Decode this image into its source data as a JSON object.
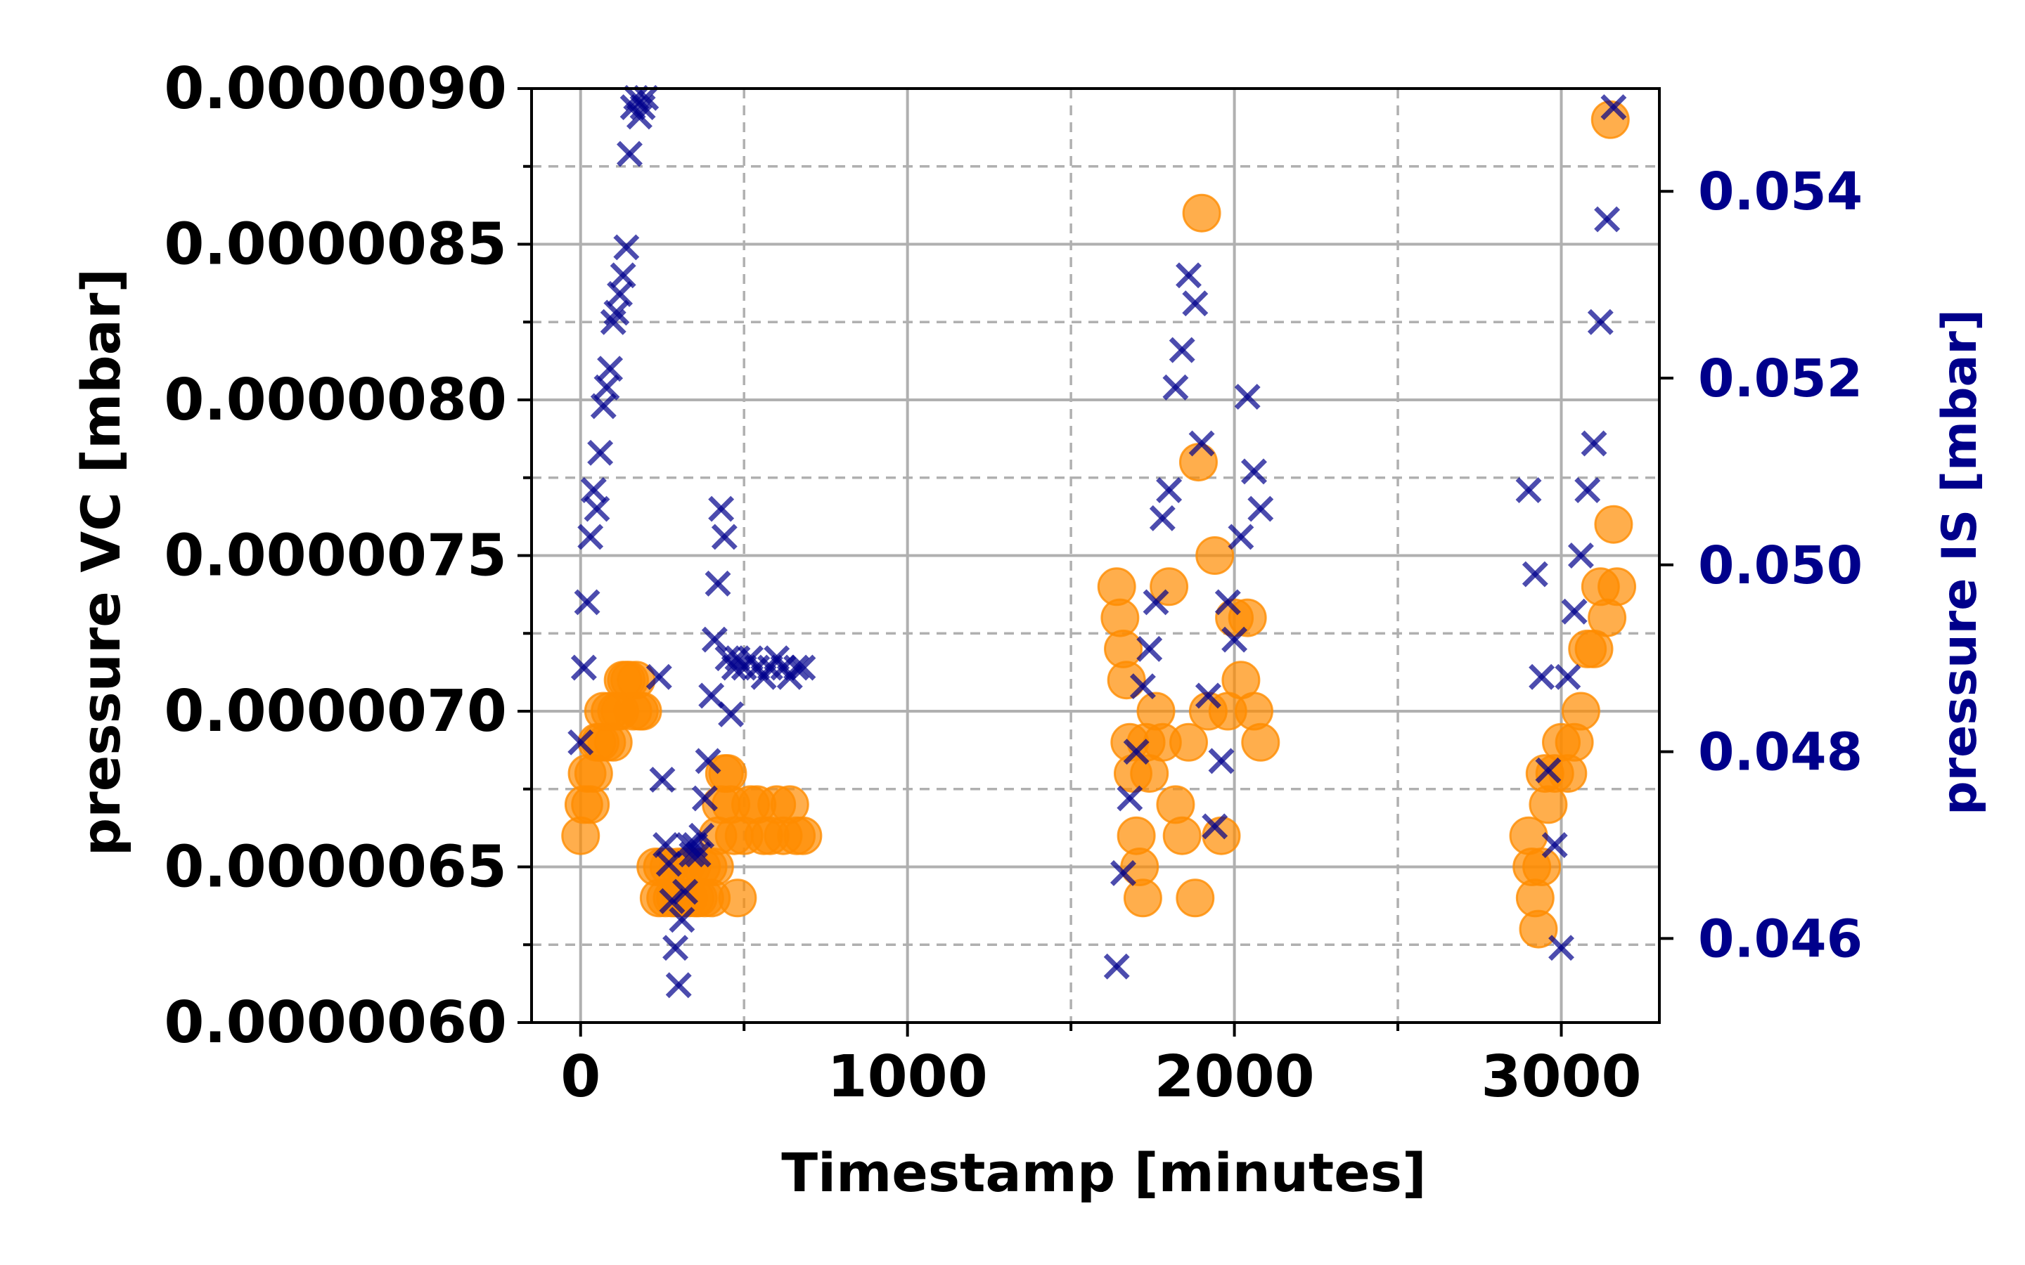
{
  "colors": {
    "vc_color": "#FF8C00",
    "is_color": "#00008B",
    "grid": "#b0b0b0",
    "axis": "#000000"
  },
  "chart_data": {
    "type": "scatter",
    "title": "",
    "xlabel": "Timestamp [minutes]",
    "ylabel": "pressure VC [mbar]",
    "ylabel_right": "pressure IS [mbar]",
    "xlim": [
      -150,
      3300
    ],
    "ylim": [
      6e-06,
      9e-06
    ],
    "ylim_right": [
      0.0451,
      0.0551
    ],
    "xticks": [
      0,
      1000,
      2000,
      3000
    ],
    "xtick_labels": [
      "0",
      "1000",
      "2000",
      "3000"
    ],
    "xticks_minor": [
      500,
      1500,
      2500
    ],
    "yticks": [
      6e-06,
      6.5e-06,
      7e-06,
      7.5e-06,
      8e-06,
      8.5e-06,
      9e-06
    ],
    "ytick_labels": [
      "0.0000060",
      "0.0000065",
      "0.0000070",
      "0.0000075",
      "0.0000080",
      "0.0000085",
      "0.0000090"
    ],
    "yticks_minor": [
      6.25e-06,
      6.75e-06,
      7.25e-06,
      7.75e-06,
      8.25e-06,
      8.75e-06
    ],
    "yticks_right": [
      0.046,
      0.048,
      0.05,
      0.052,
      0.054
    ],
    "ytick_labels_right": [
      "0.046",
      "0.048",
      "0.050",
      "0.052",
      "0.054"
    ],
    "grid": true,
    "legend": "none",
    "series": [
      {
        "axis": "left",
        "marker": "circle",
        "color": "#FF8C00",
        "x": [
          0,
          10,
          20,
          30,
          40,
          50,
          60,
          70,
          80,
          90,
          100,
          110,
          120,
          130,
          140,
          150,
          160,
          170,
          180,
          190,
          230,
          240,
          250,
          260,
          270,
          280,
          290,
          300,
          310,
          320,
          330,
          340,
          350,
          360,
          370,
          380,
          390,
          400,
          410,
          420,
          430,
          440,
          450,
          460,
          470,
          480,
          500,
          520,
          540,
          560,
          580,
          600,
          620,
          640,
          660,
          680,
          1640,
          1650,
          1660,
          1670,
          1680,
          1690,
          1700,
          1710,
          1720,
          1730,
          1740,
          1760,
          1780,
          1800,
          1820,
          1840,
          1860,
          1880,
          1890,
          1900,
          1920,
          1940,
          1960,
          1980,
          2000,
          2020,
          2040,
          2060,
          2080,
          2900,
          2910,
          2920,
          2930,
          2940,
          2950,
          2960,
          2980,
          3000,
          3020,
          3040,
          3060,
          3080,
          3100,
          3120,
          3140,
          3150,
          3160,
          3170
        ],
        "y": [
          6.6e-06,
          6.7e-06,
          6.8e-06,
          6.7e-06,
          6.8e-06,
          6.9e-06,
          6.9e-06,
          7e-06,
          6.9e-06,
          7e-06,
          6.9e-06,
          7e-06,
          7e-06,
          7.1e-06,
          7.1e-06,
          7.1e-06,
          7e-06,
          7.1e-06,
          7e-06,
          7e-06,
          6.5e-06,
          6.4e-06,
          6.5e-06,
          6.4e-06,
          6.5e-06,
          6.4e-06,
          6.4e-06,
          6.5e-06,
          6.4e-06,
          6.5e-06,
          6.4e-06,
          6.5e-06,
          6.4e-06,
          6.4e-06,
          6.5e-06,
          6.4e-06,
          6.5e-06,
          6.4e-06,
          6.5e-06,
          6.6e-06,
          6.7e-06,
          6.8e-06,
          6.8e-06,
          6.7e-06,
          6.6e-06,
          6.4e-06,
          6.6e-06,
          6.7e-06,
          6.7e-06,
          6.6e-06,
          6.6e-06,
          6.7e-06,
          6.6e-06,
          6.7e-06,
          6.6e-06,
          6.6e-06,
          7.4e-06,
          7.3e-06,
          7.2e-06,
          7.1e-06,
          6.9e-06,
          6.8e-06,
          6.6e-06,
          6.5e-06,
          6.4e-06,
          6.9e-06,
          6.8e-06,
          7e-06,
          6.9e-06,
          7.4e-06,
          6.7e-06,
          6.6e-06,
          6.9e-06,
          6.4e-06,
          7.8e-06,
          8.6e-06,
          7e-06,
          7.5e-06,
          6.6e-06,
          7e-06,
          7.3e-06,
          7.1e-06,
          7.3e-06,
          7e-06,
          6.9e-06,
          6.6e-06,
          6.5e-06,
          6.4e-06,
          6.3e-06,
          6.5e-06,
          6.8e-06,
          6.7e-06,
          6.8e-06,
          6.9e-06,
          6.8e-06,
          6.9e-06,
          7e-06,
          7.2e-06,
          7.2e-06,
          7.4e-06,
          7.3e-06,
          8.9e-06,
          7.6e-06,
          7.4e-06
        ]
      },
      {
        "axis": "right",
        "marker": "x",
        "color": "#00008B",
        "x": [
          0,
          10,
          20,
          30,
          40,
          50,
          60,
          70,
          80,
          90,
          100,
          110,
          120,
          130,
          140,
          150,
          160,
          170,
          180,
          190,
          200,
          240,
          250,
          260,
          270,
          280,
          290,
          300,
          310,
          320,
          330,
          340,
          350,
          360,
          370,
          380,
          390,
          400,
          410,
          420,
          430,
          440,
          450,
          460,
          470,
          480,
          500,
          520,
          540,
          560,
          580,
          600,
          620,
          640,
          660,
          680,
          1640,
          1660,
          1680,
          1700,
          1720,
          1740,
          1760,
          1780,
          1800,
          1820,
          1840,
          1860,
          1880,
          1900,
          1920,
          1940,
          1960,
          1980,
          2000,
          2020,
          2040,
          2060,
          2080,
          2900,
          2920,
          2940,
          2960,
          2980,
          3000,
          3020,
          3040,
          3060,
          3080,
          3100,
          3120,
          3140,
          3160
        ],
        "y": [
          0.0481,
          0.0489,
          0.0496,
          0.0503,
          0.0508,
          0.0506,
          0.0512,
          0.0517,
          0.0519,
          0.0521,
          0.0526,
          0.0527,
          0.0529,
          0.0531,
          0.0534,
          0.0544,
          0.0549,
          0.055,
          0.0548,
          0.0549,
          0.055,
          0.0488,
          0.0477,
          0.047,
          0.0468,
          0.0464,
          0.0459,
          0.0455,
          0.0462,
          0.0465,
          0.047,
          0.0469,
          0.047,
          0.0469,
          0.0471,
          0.0475,
          0.0479,
          0.0486,
          0.0492,
          0.0498,
          0.0506,
          0.0503,
          0.049,
          0.0484,
          0.0489,
          0.049,
          0.0489,
          0.049,
          0.0489,
          0.0488,
          0.0489,
          0.049,
          0.0489,
          0.0488,
          0.0489,
          0.0489,
          0.0457,
          0.0467,
          0.0475,
          0.048,
          0.0487,
          0.0491,
          0.0496,
          0.0505,
          0.0508,
          0.0519,
          0.0523,
          0.0531,
          0.0528,
          0.0513,
          0.0486,
          0.0472,
          0.0479,
          0.0496,
          0.0492,
          0.0503,
          0.0518,
          0.051,
          0.0506,
          0.0508,
          0.0499,
          0.0488,
          0.0478,
          0.047,
          0.0459,
          0.0488,
          0.0495,
          0.0501,
          0.0508,
          0.0513,
          0.0526,
          0.0537,
          0.0549
        ]
      }
    ]
  }
}
